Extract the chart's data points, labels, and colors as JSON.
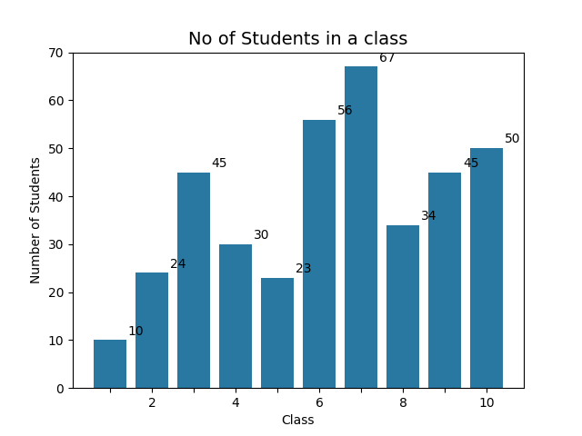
{
  "categories": [
    1,
    2,
    3,
    4,
    5,
    6,
    7,
    8,
    9,
    10
  ],
  "values": [
    10,
    24,
    45,
    30,
    23,
    56,
    67,
    34,
    45,
    50
  ],
  "bar_color": "#2878a2",
  "title": "No of Students in a class",
  "xlabel": "Class",
  "ylabel": "Number of Students",
  "ylim": [
    0,
    70
  ],
  "title_fontsize": 14,
  "label_fontsize": 10,
  "annotation_fontsize": 10
}
